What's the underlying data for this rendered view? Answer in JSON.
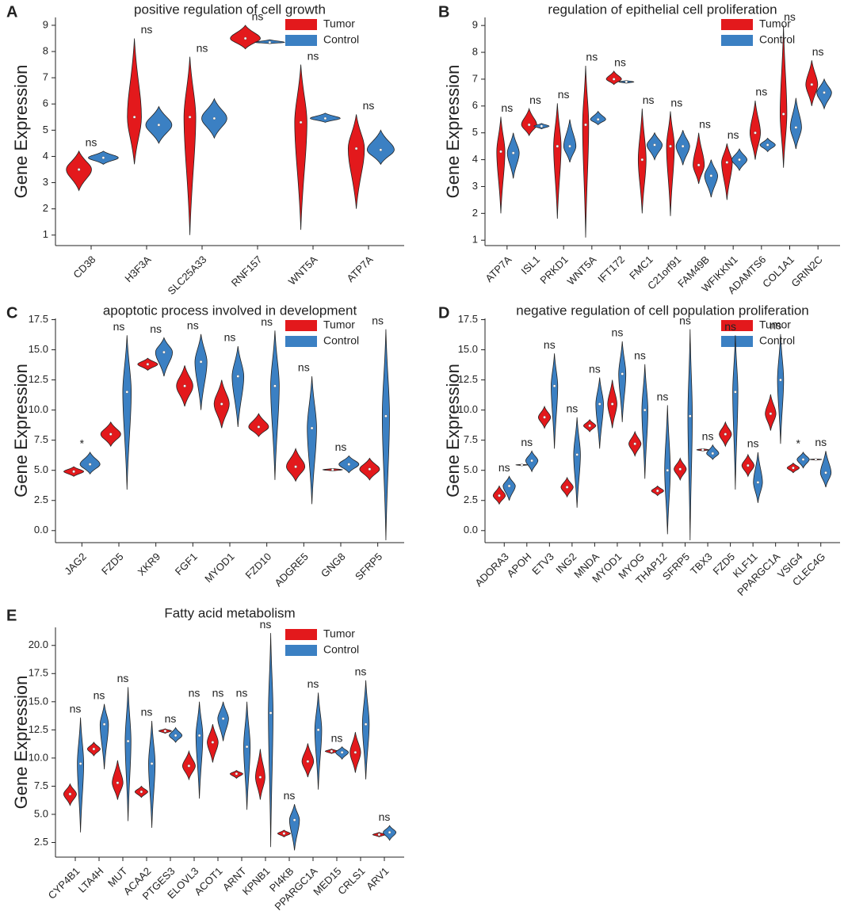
{
  "chart_data": [
    {
      "type": "violin",
      "panel_label": "A",
      "title": "positive regulation of cell growth",
      "ylabel": "Gene Expression",
      "categories": [
        "CD38",
        "H3F3A",
        "SLC25A33",
        "RNF157",
        "WNT5A",
        "ATP7A"
      ],
      "annotations": [
        "ns",
        "ns",
        "ns",
        "ns",
        "ns",
        "ns"
      ],
      "ylim": [
        0.6,
        9.3
      ],
      "yticks": [
        1,
        2,
        3,
        4,
        5,
        6,
        7,
        8,
        9
      ],
      "legend": "upper right",
      "series": [
        {
          "name": "Tumor",
          "color": "#e3191c",
          "values": [
            3.5,
            5.5,
            5.5,
            8.5,
            5.3,
            4.3
          ],
          "mins": [
            2.7,
            3.7,
            1.0,
            8.1,
            1.2,
            2.0
          ],
          "maxs": [
            4.2,
            8.5,
            7.8,
            9.0,
            7.5,
            5.6
          ]
        },
        {
          "name": "Control",
          "color": "#3b80c3",
          "values": [
            3.95,
            5.2,
            5.45,
            8.35,
            5.45,
            4.25
          ],
          "mins": [
            3.7,
            4.5,
            4.7,
            8.3,
            5.3,
            3.7
          ],
          "maxs": [
            4.2,
            5.9,
            6.2,
            8.45,
            5.65,
            5.0
          ]
        }
      ]
    },
    {
      "type": "violin",
      "panel_label": "B",
      "title": "regulation of epithelial cell proliferation",
      "ylabel": "Gene Expression",
      "categories": [
        "ATP7A",
        "ISL1",
        "PRKD1",
        "WNT5A",
        "IFT172",
        "FMC1",
        "C21orf91",
        "FAM49B",
        "WFIKKN1",
        "ADAMTS6",
        "COL1A1",
        "GRIN2C"
      ],
      "annotations": [
        "ns",
        "ns",
        "ns",
        "ns",
        "ns",
        "ns",
        "ns",
        "ns",
        "ns",
        "ns",
        "ns",
        "ns"
      ],
      "ylim": [
        0.8,
        9.3
      ],
      "yticks": [
        1,
        2,
        3,
        4,
        5,
        6,
        7,
        8,
        9
      ],
      "legend": "upper right",
      "series": [
        {
          "name": "Tumor",
          "color": "#e3191c",
          "values": [
            4.3,
            5.3,
            4.5,
            5.3,
            7.0,
            4.0,
            4.5,
            3.8,
            3.9,
            5.0,
            5.7,
            6.8
          ],
          "mins": [
            2.0,
            4.9,
            1.8,
            1.1,
            6.8,
            2.0,
            1.9,
            3.1,
            2.5,
            4.0,
            3.7,
            6.0
          ],
          "maxs": [
            5.6,
            5.9,
            6.1,
            7.5,
            7.3,
            5.9,
            5.8,
            5.0,
            4.6,
            6.2,
            9.0,
            7.7
          ]
        },
        {
          "name": "Control",
          "color": "#3b80c3",
          "values": [
            4.25,
            5.25,
            4.5,
            5.5,
            6.9,
            4.55,
            4.5,
            3.4,
            4.0,
            4.55,
            5.2,
            6.5
          ],
          "mins": [
            3.3,
            5.15,
            3.9,
            5.3,
            6.85,
            4.0,
            3.8,
            2.6,
            3.6,
            4.3,
            4.4,
            5.9
          ],
          "maxs": [
            5.0,
            5.35,
            5.5,
            5.8,
            6.95,
            5.0,
            5.1,
            4.0,
            4.4,
            4.8,
            6.3,
            7.0
          ]
        }
      ]
    },
    {
      "type": "violin",
      "panel_label": "C",
      "title": "apoptotic process involved in development",
      "ylabel": "Gene Expression",
      "categories": [
        "JAG2",
        "FZD5",
        "XKR9",
        "FGF1",
        "MYOD1",
        "FZD10",
        "ADGRE5",
        "GNG8",
        "SFRP5"
      ],
      "annotations": [
        "*",
        "ns",
        "ns",
        "ns",
        "ns",
        "ns",
        "ns",
        "ns",
        "ns"
      ],
      "ylim": [
        -1,
        17.6
      ],
      "yticks": [
        {
          "value": 0,
          "label": "0.0"
        },
        2.5,
        {
          "value": 5,
          "label": "5.0"
        },
        7.5,
        {
          "value": 10,
          "label": "10.0"
        },
        12.5,
        {
          "value": 15,
          "label": "15.0"
        },
        17.5
      ],
      "legend": "upper right",
      "series": [
        {
          "name": "Tumor",
          "color": "#e3191c",
          "values": [
            4.9,
            8.0,
            13.8,
            12.0,
            10.5,
            8.6,
            5.3,
            5.05,
            5.1
          ],
          "mins": [
            4.5,
            7.0,
            13.3,
            10.3,
            8.5,
            7.8,
            4.1,
            4.95,
            4.2
          ],
          "maxs": [
            5.3,
            9.0,
            14.3,
            13.7,
            12.5,
            9.7,
            6.8,
            5.15,
            6.0
          ]
        },
        {
          "name": "Control",
          "color": "#3b80c3",
          "values": [
            5.5,
            11.5,
            14.8,
            14.0,
            12.8,
            12.0,
            8.5,
            5.5,
            9.5
          ],
          "mins": [
            4.7,
            3.4,
            12.8,
            10.0,
            8.6,
            4.2,
            2.2,
            4.8,
            -0.8
          ],
          "maxs": [
            6.5,
            16.2,
            16.0,
            16.3,
            15.3,
            16.6,
            12.8,
            6.2,
            16.7
          ]
        }
      ]
    },
    {
      "type": "violin",
      "panel_label": "D",
      "title": "negative regulation of cell population proliferation",
      "ylabel": "Gene Expression",
      "categories": [
        "ADORA3",
        "APOH",
        "ETV3",
        "ING2",
        "MNDA",
        "MYOD1",
        "MYOG",
        "THAP12",
        "SFRP5",
        "TBX3",
        "FZD5",
        "KLF11",
        "PPARGC1A",
        "VSIG4",
        "CLEC4G"
      ],
      "annotations": [
        "ns",
        "ns",
        "ns",
        "ns",
        "ns",
        "ns",
        "ns",
        "ns",
        "ns",
        "ns",
        "ns",
        "ns",
        "ns",
        "*",
        "ns"
      ],
      "ylim": [
        -1,
        17.6
      ],
      "yticks": [
        {
          "value": 0,
          "label": "0.0"
        },
        2.5,
        {
          "value": 5,
          "label": "5.0"
        },
        7.5,
        {
          "value": 10,
          "label": "10.0"
        },
        12.5,
        {
          "value": 15,
          "label": "15.0"
        },
        17.5
      ],
      "legend": "upper right",
      "series": [
        {
          "name": "Tumor",
          "color": "#e3191c",
          "values": [
            2.9,
            5.45,
            9.4,
            3.6,
            8.7,
            10.5,
            7.2,
            3.3,
            5.1,
            6.7,
            8.0,
            5.4,
            9.7,
            5.2,
            5.9
          ],
          "mins": [
            2.2,
            5.4,
            8.5,
            2.8,
            8.2,
            8.5,
            6.2,
            2.9,
            4.2,
            6.6,
            7.0,
            4.5,
            8.3,
            4.8,
            5.85
          ],
          "maxs": [
            3.7,
            5.5,
            10.3,
            4.4,
            9.2,
            12.5,
            8.2,
            3.7,
            6.0,
            6.8,
            9.0,
            6.3,
            11.3,
            5.6,
            5.95
          ]
        },
        {
          "name": "Control",
          "color": "#3b80c3",
          "values": [
            3.7,
            5.8,
            12.0,
            6.3,
            10.5,
            13.0,
            10.0,
            5.0,
            9.5,
            6.4,
            11.5,
            4.0,
            12.5,
            5.9,
            4.8
          ],
          "mins": [
            2.5,
            4.9,
            6.8,
            1.9,
            6.8,
            9.0,
            4.3,
            -0.3,
            -0.8,
            5.9,
            3.4,
            2.3,
            7.2,
            5.2,
            3.6
          ],
          "maxs": [
            4.5,
            6.6,
            14.7,
            9.4,
            12.7,
            15.7,
            13.8,
            10.4,
            16.7,
            7.1,
            16.2,
            6.5,
            16.3,
            6.5,
            6.6
          ]
        }
      ]
    },
    {
      "type": "violin",
      "panel_label": "E",
      "title": "Fatty acid metabolism",
      "ylabel": "Gene Expression",
      "categories": [
        "CYP4B1",
        "LTA4H",
        "MUT",
        "ACAA2",
        "PTGES3",
        "ELOVL3",
        "ACOT1",
        "ARNT",
        "KPNB1",
        "PI4KB",
        "PPARGC1A",
        "MED15",
        "CRLS1",
        "ARV1"
      ],
      "annotations": [
        "ns",
        "ns",
        "ns",
        "ns",
        "ns",
        "ns",
        "ns",
        "ns",
        "ns",
        "ns",
        "ns",
        "ns",
        "ns",
        "ns"
      ],
      "ylim": [
        1.2,
        21.6
      ],
      "yticks": [
        2.5,
        {
          "value": 5,
          "label": "5.0"
        },
        7.5,
        {
          "value": 10,
          "label": "10.0"
        },
        12.5,
        {
          "value": 15,
          "label": "15.0"
        },
        17.5,
        {
          "value": 20,
          "label": "20.0"
        }
      ],
      "legend": "upper right",
      "series": [
        {
          "name": "Tumor",
          "color": "#e3191c",
          "values": [
            6.8,
            10.8,
            7.8,
            7.0,
            12.4,
            9.3,
            11.4,
            8.6,
            8.3,
            3.3,
            9.7,
            10.6,
            10.5,
            3.2
          ],
          "mins": [
            5.8,
            10.2,
            6.3,
            6.5,
            12.2,
            8.1,
            9.6,
            8.2,
            6.3,
            3.0,
            8.3,
            10.4,
            8.7,
            3.0
          ],
          "maxs": [
            7.7,
            11.4,
            9.8,
            7.5,
            12.6,
            10.6,
            13.0,
            8.9,
            10.8,
            3.6,
            11.3,
            10.8,
            12.3,
            3.4
          ]
        },
        {
          "name": "Control",
          "color": "#3b80c3",
          "values": [
            9.5,
            13.0,
            11.5,
            9.5,
            12.0,
            12.0,
            13.5,
            11.0,
            14.0,
            4.5,
            12.5,
            10.5,
            13.0,
            3.4
          ],
          "mins": [
            3.4,
            9.0,
            4.4,
            3.8,
            11.4,
            6.4,
            11.5,
            5.4,
            2.1,
            1.8,
            7.2,
            9.9,
            8.1,
            2.7
          ],
          "maxs": [
            13.6,
            14.8,
            16.3,
            13.3,
            12.7,
            15.0,
            15.0,
            15.0,
            21.1,
            5.9,
            15.8,
            11.0,
            16.9,
            4.0
          ]
        }
      ]
    }
  ]
}
